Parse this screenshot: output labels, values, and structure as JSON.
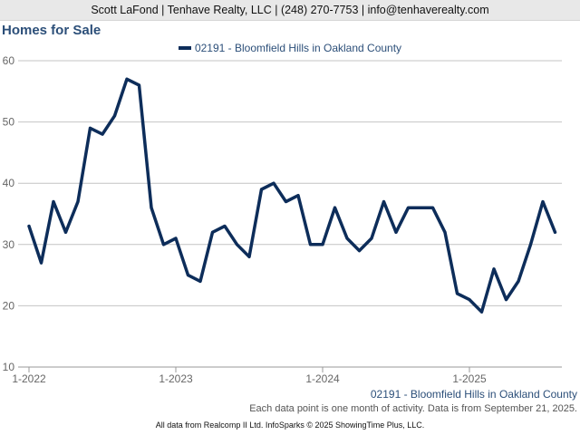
{
  "header": "Scott LaFond | Tenhave Realty, LLC | (248) 270-7753 | info@tenhaverealty.com",
  "title": "Homes for Sale",
  "legend": "02191 - Bloomfield Hills in Oakland County",
  "series_label": "02191 - Bloomfield Hills in Oakland County",
  "note": "Each data point is one month of activity. Data is from September 21, 2025.",
  "footer": "All data from Realcomp II Ltd. InfoSparks © 2025 ShowingTime Plus, LLC.",
  "colors": {
    "line": "#0d2d5a",
    "grid": "#c4c4c4",
    "axis_text": "#666666"
  },
  "chart_data": {
    "type": "line",
    "title": "Homes for Sale",
    "ylim": [
      10,
      60
    ],
    "y_ticks": [
      10,
      20,
      30,
      40,
      50,
      60
    ],
    "x_ticks": [
      {
        "label": "1-2022",
        "index": 0
      },
      {
        "label": "1-2023",
        "index": 12
      },
      {
        "label": "1-2024",
        "index": 24
      },
      {
        "label": "1-2025",
        "index": 36
      }
    ],
    "grid": true,
    "legend_position": "top-center",
    "series": [
      {
        "name": "02191 - Bloomfield Hills in Oakland County",
        "start": "1-2022",
        "values": [
          33,
          27,
          37,
          32,
          37,
          49,
          48,
          51,
          57,
          56,
          36,
          30,
          31,
          25,
          24,
          32,
          33,
          30,
          28,
          39,
          40,
          37,
          38,
          30,
          30,
          36,
          31,
          29,
          31,
          37,
          32,
          36,
          36,
          36,
          32,
          22,
          21,
          19,
          26,
          21,
          24,
          30,
          37,
          32
        ]
      }
    ]
  }
}
